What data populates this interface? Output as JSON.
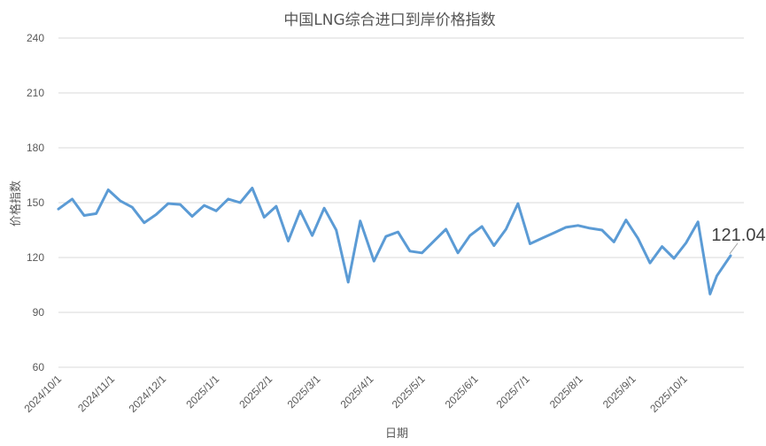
{
  "chart_data": {
    "type": "line",
    "title": "中国LNG综合进口到岸价格指数",
    "xlabel": "日期",
    "ylabel": "价格指数",
    "ylim": [
      60,
      240
    ],
    "yticks": [
      60,
      90,
      120,
      150,
      180,
      210,
      240
    ],
    "grid": true,
    "xlim": [
      "2024-10-01",
      "2025-10-28"
    ],
    "xticks": [
      "2024-10-01",
      "2024-11-01",
      "2024-12-01",
      "2025-01-01",
      "2025-02-01",
      "2025-03-01",
      "2025-04-01",
      "2025-05-01",
      "2025-06-01",
      "2025-07-01",
      "2025-08-01",
      "2025-09-01",
      "2025-10-01"
    ],
    "xtick_labels": [
      "2024/10/1",
      "2024/11/1",
      "2024/12/1",
      "2025/1/1",
      "2025/2/1",
      "2025/3/1",
      "2025/4/1",
      "2025/5/1",
      "2025/6/1",
      "2025/7/1",
      "2025/8/1",
      "2025/9/1",
      "2025/10/1"
    ],
    "series": [
      {
        "color": "#5b9bd5",
        "x": [
          "2024-10-01",
          "2024-10-09",
          "2024-10-16",
          "2024-10-23",
          "2024-10-30",
          "2024-11-06",
          "2024-11-13",
          "2024-11-20",
          "2024-11-27",
          "2024-12-04",
          "2024-12-11",
          "2024-12-18",
          "2024-12-25",
          "2025-01-01",
          "2025-01-08",
          "2025-01-15",
          "2025-01-22",
          "2025-01-29",
          "2025-02-05",
          "2025-02-12",
          "2025-02-19",
          "2025-02-26",
          "2025-03-05",
          "2025-03-12",
          "2025-03-19",
          "2025-03-26",
          "2025-04-03",
          "2025-04-10",
          "2025-04-17",
          "2025-04-24",
          "2025-05-01",
          "2025-05-08",
          "2025-05-15",
          "2025-05-22",
          "2025-05-29",
          "2025-06-05",
          "2025-06-12",
          "2025-06-19",
          "2025-06-26",
          "2025-07-03",
          "2025-07-10",
          "2025-07-17",
          "2025-07-24",
          "2025-07-31",
          "2025-08-07",
          "2025-08-14",
          "2025-08-21",
          "2025-08-28",
          "2025-09-04",
          "2025-09-11",
          "2025-09-18",
          "2025-09-25",
          "2025-10-02",
          "2025-10-09",
          "2025-10-16",
          "2025-10-20",
          "2025-10-28"
        ],
        "values": [
          146.5,
          152.0,
          143.0,
          144.0,
          157.0,
          151.0,
          147.5,
          139.0,
          143.5,
          149.5,
          149.0,
          142.5,
          148.5,
          145.5,
          152.0,
          150.0,
          158.0,
          142.0,
          148.0,
          129.0,
          145.5,
          132.0,
          147.0,
          135.0,
          106.5,
          140.0,
          118.0,
          131.5,
          134.0,
          123.5,
          122.5,
          129.0,
          135.5,
          122.5,
          132.0,
          137.0,
          126.5,
          135.5,
          149.5,
          127.5,
          130.5,
          133.5,
          136.5,
          137.5,
          136.0,
          135.0,
          128.5,
          140.5,
          130.5,
          117.0,
          126.0,
          119.5,
          128.0,
          139.5,
          100.0,
          110.0,
          121.04
        ]
      }
    ],
    "annotations": [
      {
        "text": "121.04",
        "x": "2025-10-28",
        "y": 121.04
      }
    ]
  }
}
